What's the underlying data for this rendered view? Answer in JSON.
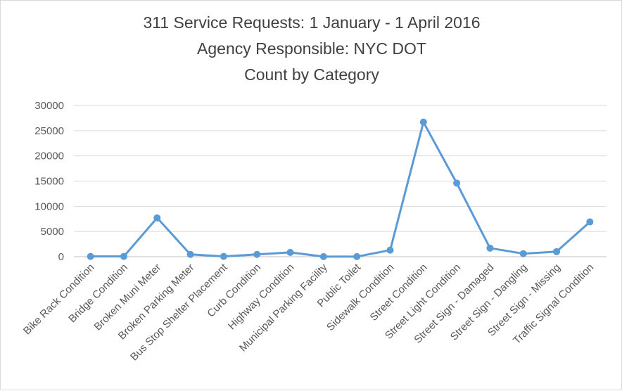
{
  "chart_data": {
    "type": "line",
    "title": [
      "311 Service Requests: 1 January - 1 April 2016",
      "Agency Responsible:  NYC DOT",
      "Count by Category"
    ],
    "xlabel": "",
    "ylabel": "",
    "ylim": [
      0,
      30000
    ],
    "yticks": [
      0,
      5000,
      10000,
      15000,
      20000,
      25000,
      30000
    ],
    "grid": true,
    "legend": "none",
    "categories": [
      "Bike Rack Condition",
      "Bridge Condition",
      "Broken Muni Meter",
      "Broken Parking Meter",
      "Bus Stop Shelter Placement",
      "Curb Condition",
      "Highway Condition",
      "Municipal Parking Facility",
      "Public Toilet",
      "Sidewalk Condition",
      "Street Condition",
      "Street Light Condition",
      "Street Sign - Damaged",
      "Street Sign - Dangling",
      "Street Sign - Missing",
      "Traffic Signal Condition"
    ],
    "series": [
      {
        "name": "Count",
        "color": "#5b9bd5",
        "values": [
          50,
          60,
          7700,
          450,
          50,
          450,
          850,
          20,
          20,
          1300,
          26700,
          14600,
          1700,
          600,
          1000,
          6900
        ]
      }
    ]
  }
}
